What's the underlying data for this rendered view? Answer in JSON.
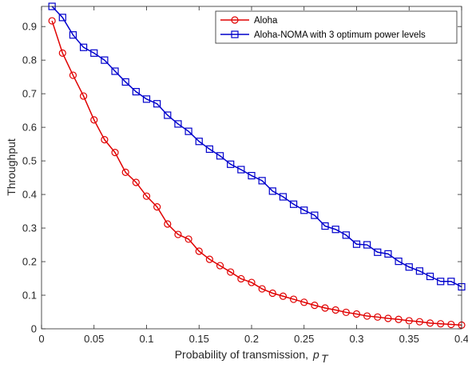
{
  "chart_data": {
    "type": "line",
    "xlabel": "Probability of transmission,",
    "xlabel_symbol": "p",
    "xlabel_subscript": "T",
    "ylabel": "Throughput",
    "xlim": [
      0,
      0.4
    ],
    "ylim": [
      0,
      0.96
    ],
    "xticks": [
      0,
      0.05,
      0.1,
      0.15,
      0.2,
      0.25,
      0.3,
      0.35,
      0.4
    ],
    "xtick_labels": [
      "0",
      "0.05",
      "0.1",
      "0.15",
      "0.2",
      "0.25",
      "0.3",
      "0.35",
      "0.4"
    ],
    "yticks": [
      0,
      0.1,
      0.2,
      0.3,
      0.4,
      0.5,
      0.6,
      0.7,
      0.8,
      0.9
    ],
    "ytick_labels": [
      "0",
      "0.1",
      "0.2",
      "0.3",
      "0.4",
      "0.5",
      "0.6",
      "0.7",
      "0.8",
      "0.9"
    ],
    "grid": false,
    "legend_position": "top-right",
    "x": [
      0.01,
      0.02,
      0.03,
      0.04,
      0.05,
      0.06,
      0.07,
      0.08,
      0.09,
      0.1,
      0.11,
      0.12,
      0.13,
      0.14,
      0.15,
      0.16,
      0.17,
      0.18,
      0.19,
      0.2,
      0.21,
      0.22,
      0.23,
      0.24,
      0.25,
      0.26,
      0.27,
      0.28,
      0.29,
      0.3,
      0.31,
      0.32,
      0.33,
      0.34,
      0.35,
      0.36,
      0.37,
      0.38,
      0.39,
      0.4
    ],
    "series": [
      {
        "name": "Aloha",
        "color": "#e00000",
        "marker": "circle",
        "values": [
          0.917,
          0.821,
          0.755,
          0.693,
          0.622,
          0.563,
          0.525,
          0.466,
          0.436,
          0.395,
          0.363,
          0.312,
          0.281,
          0.267,
          0.231,
          0.207,
          0.188,
          0.169,
          0.149,
          0.138,
          0.119,
          0.106,
          0.097,
          0.088,
          0.079,
          0.07,
          0.062,
          0.056,
          0.049,
          0.044,
          0.038,
          0.035,
          0.031,
          0.028,
          0.024,
          0.021,
          0.017,
          0.015,
          0.013,
          0.011
        ]
      },
      {
        "name": "Aloha-NOMA with 3 optimum power levels",
        "color": "#0000cc",
        "marker": "square",
        "values": [
          0.96,
          0.927,
          0.875,
          0.838,
          0.821,
          0.8,
          0.767,
          0.735,
          0.706,
          0.684,
          0.67,
          0.636,
          0.61,
          0.588,
          0.558,
          0.535,
          0.515,
          0.49,
          0.474,
          0.456,
          0.441,
          0.41,
          0.393,
          0.371,
          0.353,
          0.338,
          0.306,
          0.296,
          0.279,
          0.252,
          0.25,
          0.228,
          0.223,
          0.201,
          0.184,
          0.172,
          0.156,
          0.141,
          0.141,
          0.125
        ]
      }
    ]
  }
}
